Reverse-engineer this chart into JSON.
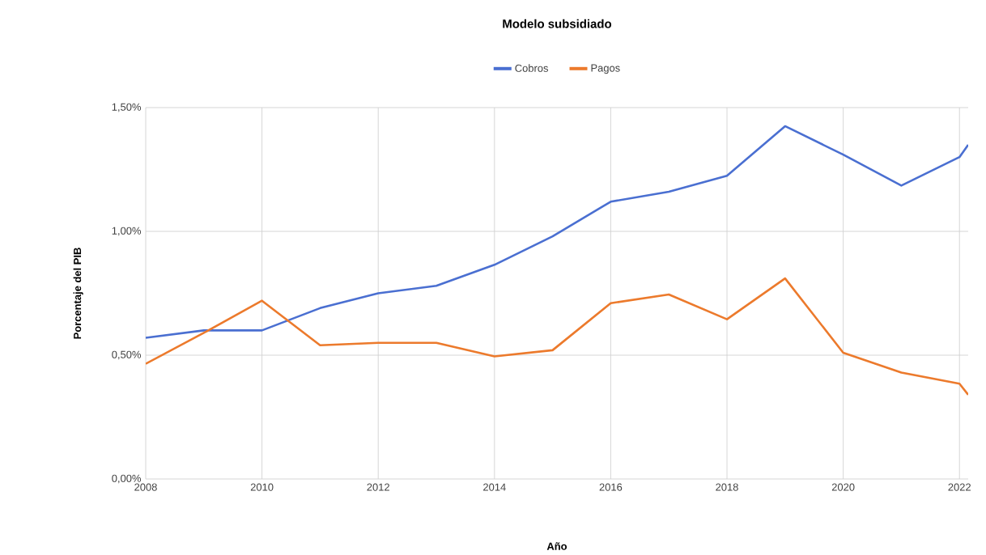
{
  "chart_data": {
    "type": "line",
    "title": "Modelo subsidiado",
    "xlabel": "Año",
    "ylabel": "Porcentaje del PIB",
    "x": [
      2008,
      2009,
      2010,
      2011,
      2012,
      2013,
      2014,
      2015,
      2016,
      2017,
      2018,
      2019,
      2020,
      2021,
      2022,
      2022.15
    ],
    "series": [
      {
        "name": "Cobros",
        "color": "#4a6fd1",
        "values": [
          0.57,
          0.6,
          0.6,
          0.69,
          0.75,
          0.78,
          0.865,
          0.98,
          1.12,
          1.16,
          1.225,
          1.425,
          1.31,
          1.185,
          1.3,
          1.35
        ]
      },
      {
        "name": "Pagos",
        "color": "#ec7a2c",
        "values": [
          0.465,
          0.59,
          0.72,
          0.54,
          0.55,
          0.55,
          0.495,
          0.52,
          0.71,
          0.745,
          0.645,
          0.81,
          0.51,
          0.43,
          0.385,
          0.34
        ]
      }
    ],
    "xlim": [
      2008,
      2022.15
    ],
    "ylim": [
      0,
      1.5
    ],
    "xticks": [
      2008,
      2010,
      2012,
      2014,
      2016,
      2018,
      2020,
      2022
    ],
    "yticks": [
      {
        "value": 0,
        "label": "0,00%"
      },
      {
        "value": 0.5,
        "label": "0,50%"
      },
      {
        "value": 1.0,
        "label": "1,00%"
      },
      {
        "value": 1.5,
        "label": "1,50%"
      }
    ],
    "grid": true,
    "legend": "top",
    "marker": "none",
    "line_style": "solid"
  }
}
